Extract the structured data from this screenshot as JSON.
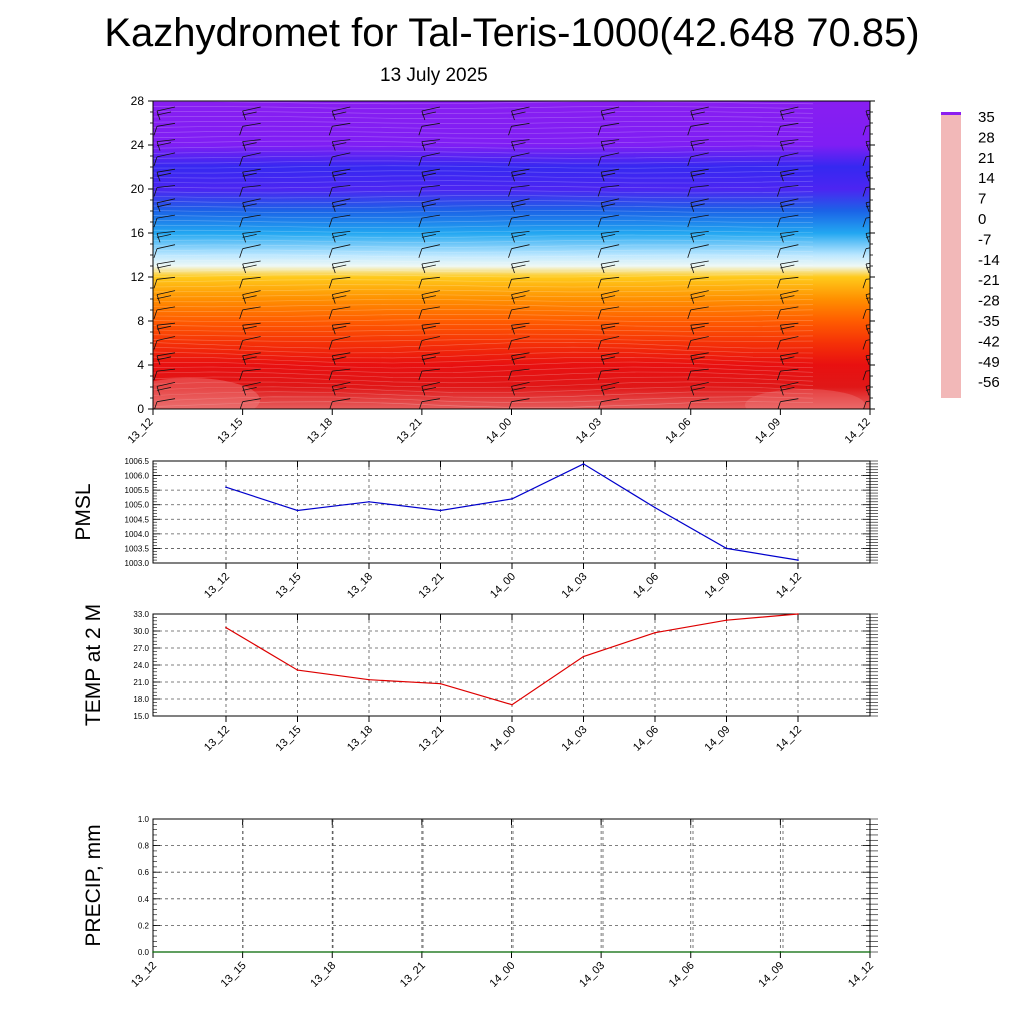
{
  "title": "Kazhydromet for Tal-Teris-1000(42.648 70.85)",
  "subtitle": "13 July 2025",
  "colors": {
    "pmsl_line": "#0000cc",
    "temp_line": "#dd0000",
    "precip_line": "#006600",
    "grid": "#000000"
  },
  "chart_data": [
    {
      "id": "vertical-temperature",
      "type": "heatmap",
      "title": "",
      "xlabel": "",
      "ylabel": "",
      "x": [
        "13_12",
        "13_15",
        "13_18",
        "13_21",
        "14_00",
        "14_03",
        "14_06",
        "14_09",
        "14_12"
      ],
      "yticks": [
        0,
        4,
        8,
        12,
        16,
        20,
        24,
        28
      ],
      "ylim": [
        0,
        28
      ],
      "rows": [
        {
          "y": 0,
          "value": 31
        },
        {
          "y": 2,
          "value": 26
        },
        {
          "y": 4,
          "value": 21
        },
        {
          "y": 6,
          "value": 17
        },
        {
          "y": 8,
          "value": 12
        },
        {
          "y": 10,
          "value": 6
        },
        {
          "y": 12,
          "value": -3
        },
        {
          "y": 13,
          "value": -13
        },
        {
          "y": 14,
          "value": -18
        },
        {
          "y": 16,
          "value": -30
        },
        {
          "y": 18,
          "value": -40
        },
        {
          "y": 20,
          "value": -52
        },
        {
          "y": 22,
          "value": -50
        },
        {
          "y": 24,
          "value": -57
        },
        {
          "y": 28,
          "value": -59
        }
      ],
      "colorbar": {
        "labels": [
          "35",
          "28",
          "21",
          "14",
          "7",
          "0",
          "-7",
          "-14",
          "-21",
          "-28",
          "-35",
          "-42",
          "-49",
          "-56"
        ],
        "stops": [
          {
            "v": 35,
            "c": "#f2b8b8"
          },
          {
            "v": 28,
            "c": "#dd1a1a"
          },
          {
            "v": 21,
            "c": "#e81010"
          },
          {
            "v": 14,
            "c": "#ff4a00"
          },
          {
            "v": 7,
            "c": "#ff8a00"
          },
          {
            "v": 0,
            "c": "#ffb400"
          },
          {
            "v": -7,
            "c": "#ffe840"
          },
          {
            "v": -11,
            "c": "#fffbe0"
          },
          {
            "v": -14,
            "c": "#e6f6ff"
          },
          {
            "v": -21,
            "c": "#9bdcff"
          },
          {
            "v": -28,
            "c": "#28b4f5"
          },
          {
            "v": -35,
            "c": "#1487e6"
          },
          {
            "v": -42,
            "c": "#1e55e8"
          },
          {
            "v": -49,
            "c": "#2a2af0"
          },
          {
            "v": -56,
            "c": "#7a1ef5"
          },
          {
            "v": -60,
            "c": "#8c1ef0"
          }
        ]
      }
    },
    {
      "id": "pmsl",
      "type": "line",
      "ylabel": "PMSL",
      "x": [
        "13_12",
        "13_15",
        "13_18",
        "13_21",
        "14_00",
        "14_03",
        "14_06",
        "14_09",
        "14_12"
      ],
      "values": [
        1005.6,
        1004.8,
        1005.1,
        1004.8,
        1005.2,
        1006.4,
        1004.9,
        1003.5,
        1003.1
      ],
      "ylim": [
        1003.0,
        1006.5
      ],
      "yticks": [
        "1003.0",
        "1003.5",
        "1004.0",
        "1004.5",
        "1005.0",
        "1005.5",
        "1006.0",
        "1006.5"
      ],
      "grid": true
    },
    {
      "id": "temp2m",
      "type": "line",
      "ylabel": "TEMP at 2 M",
      "x": [
        "13_12",
        "13_15",
        "13_18",
        "13_21",
        "14_00",
        "14_03",
        "14_06",
        "14_09",
        "14_12"
      ],
      "values": [
        30.6,
        23.1,
        21.4,
        20.7,
        17.0,
        25.5,
        29.7,
        31.9,
        33.0
      ],
      "ylim": [
        15.0,
        33.0
      ],
      "yticks": [
        "15.0",
        "18.0",
        "21.0",
        "24.0",
        "27.0",
        "30.0",
        "33.0"
      ],
      "grid": true
    },
    {
      "id": "precip",
      "type": "line",
      "ylabel": "PRECIP, mm",
      "x": [
        "13_12",
        "13_15",
        "13_18",
        "13_21",
        "14_00",
        "14_03",
        "14_06",
        "14_09",
        "14_12"
      ],
      "values": [
        0,
        0,
        0,
        0,
        0,
        0,
        0,
        0,
        0
      ],
      "ylim": [
        0,
        1.0
      ],
      "yticks": [
        "0.0",
        "0.2",
        "0.4",
        "0.6",
        "0.8",
        "1.0"
      ],
      "grid": true
    }
  ]
}
